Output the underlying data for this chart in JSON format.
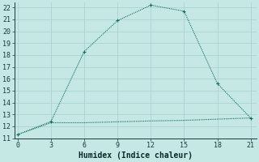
{
  "xlabel": "Humidex (Indice chaleur)",
  "bg_color": "#c5e8e5",
  "grid_color": "#aad4d0",
  "line_color": "#1a6b5a",
  "line1_x": [
    0,
    3,
    6,
    9,
    12,
    15,
    18,
    21
  ],
  "line1_y": [
    11.3,
    12.4,
    18.3,
    20.9,
    22.2,
    21.7,
    15.6,
    12.7
  ],
  "line2_x": [
    0,
    3,
    6,
    12,
    15,
    18,
    21
  ],
  "line2_y": [
    11.3,
    12.3,
    12.3,
    12.45,
    12.5,
    12.6,
    12.7
  ],
  "xlim": [
    -0.3,
    21.5
  ],
  "ylim": [
    11,
    22.4
  ],
  "xticks": [
    0,
    3,
    6,
    9,
    12,
    15,
    18,
    21
  ],
  "yticks": [
    11,
    12,
    13,
    14,
    15,
    16,
    17,
    18,
    19,
    20,
    21,
    22
  ],
  "xlabel_fontsize": 7,
  "tick_fontsize": 6,
  "linewidth": 0.8,
  "markersize": 2.5
}
